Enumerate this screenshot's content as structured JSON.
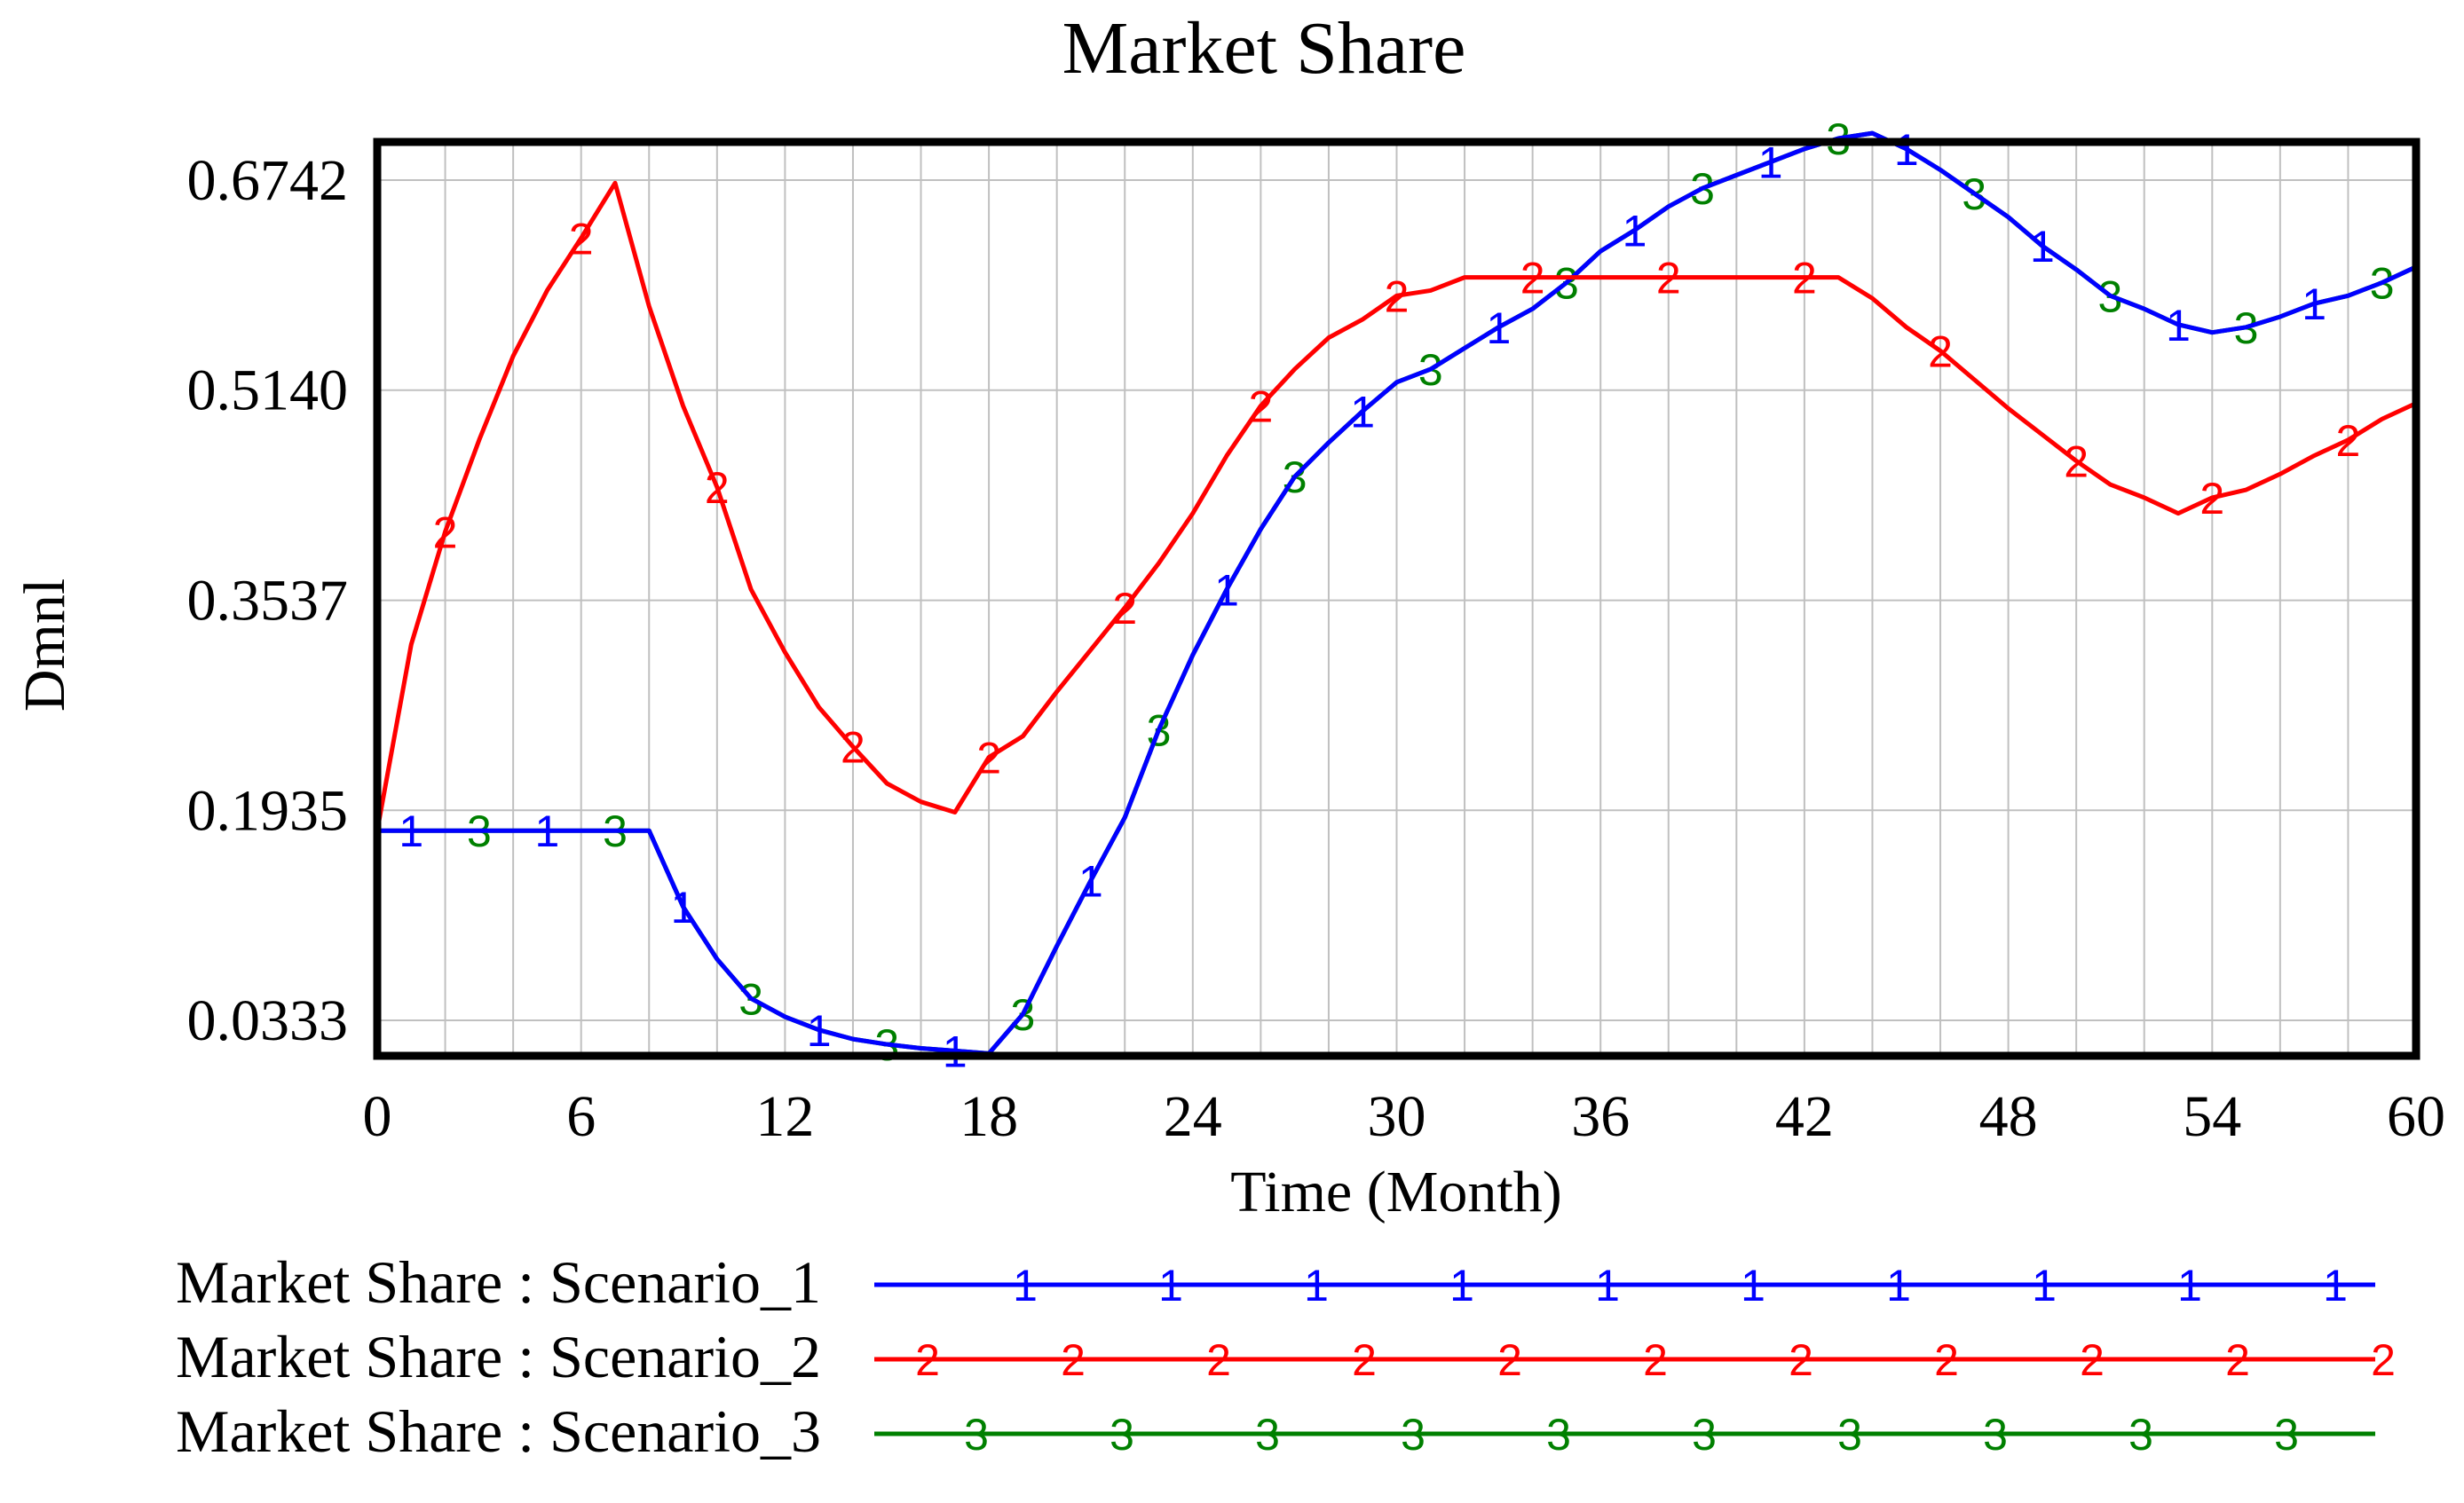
{
  "chart_data": {
    "type": "line",
    "title": "Market Share",
    "xlabel": "Time (Month)",
    "ylabel": "Dmnl",
    "xlim": [
      0,
      60
    ],
    "ylim": [
      0.0333,
      0.6742
    ],
    "x_ticks": [
      "0",
      "6",
      "12",
      "18",
      "24",
      "30",
      "36",
      "42",
      "48",
      "54",
      "60"
    ],
    "y_ticks": [
      "0.6742",
      "0.5140",
      "0.3537",
      "0.1935",
      "0.0333"
    ],
    "grid": true,
    "legend_position": "bottom",
    "series": [
      {
        "name": "Market Share : Scenario_1",
        "marker": "1",
        "color": "#0000ff",
        "x": [
          0,
          1,
          2,
          3,
          4,
          5,
          6,
          7,
          8,
          9,
          10,
          11,
          12,
          13,
          14,
          15,
          16,
          17,
          18,
          19,
          20,
          21,
          22,
          23,
          24,
          25,
          26,
          27,
          28,
          29,
          30,
          31,
          32,
          33,
          34,
          35,
          36,
          37,
          38,
          39,
          40,
          41,
          42,
          43,
          44,
          45,
          46,
          47,
          48,
          49,
          50,
          51,
          52,
          53,
          54,
          55,
          56,
          57,
          58,
          59,
          60
        ],
        "y": [
          0.178,
          0.178,
          0.178,
          0.178,
          0.178,
          0.178,
          0.178,
          0.178,
          0.178,
          0.12,
          0.08,
          0.05,
          0.036,
          0.026,
          0.019,
          0.015,
          0.012,
          0.01,
          0.008,
          0.038,
          0.09,
          0.14,
          0.188,
          0.255,
          0.312,
          0.362,
          0.408,
          0.448,
          0.474,
          0.498,
          0.52,
          0.53,
          0.546,
          0.562,
          0.576,
          0.596,
          0.62,
          0.636,
          0.654,
          0.668,
          0.678,
          0.688,
          0.698,
          0.706,
          0.71,
          0.698,
          0.682,
          0.664,
          0.646,
          0.624,
          0.606,
          0.586,
          0.576,
          0.564,
          0.558,
          0.562,
          0.57,
          0.58,
          0.586,
          0.596,
          0.608
        ]
      },
      {
        "name": "Market Share : Scenario_2",
        "marker": "2",
        "color": "#ff0000",
        "x": [
          0,
          1,
          2,
          3,
          4,
          5,
          6,
          7,
          8,
          9,
          10,
          11,
          12,
          13,
          14,
          15,
          16,
          17,
          18,
          19,
          20,
          21,
          22,
          23,
          24,
          25,
          26,
          27,
          28,
          29,
          30,
          31,
          32,
          33,
          34,
          35,
          36,
          37,
          38,
          39,
          40,
          41,
          42,
          43,
          44,
          45,
          46,
          47,
          48,
          49,
          50,
          51,
          52,
          53,
          54,
          55,
          56,
          57,
          58,
          59,
          60
        ],
        "y": [
          0.178,
          0.32,
          0.406,
          0.476,
          0.54,
          0.59,
          0.63,
          0.672,
          0.578,
          0.502,
          0.44,
          0.362,
          0.314,
          0.272,
          0.242,
          0.214,
          0.2,
          0.192,
          0.234,
          0.25,
          0.284,
          0.316,
          0.348,
          0.382,
          0.42,
          0.464,
          0.502,
          0.53,
          0.554,
          0.568,
          0.586,
          0.59,
          0.6,
          0.6,
          0.6,
          0.6,
          0.6,
          0.6,
          0.6,
          0.6,
          0.6,
          0.6,
          0.6,
          0.6,
          0.584,
          0.562,
          0.544,
          0.522,
          0.5,
          0.48,
          0.46,
          0.442,
          0.432,
          0.42,
          0.432,
          0.438,
          0.45,
          0.464,
          0.476,
          0.492,
          0.504
        ]
      },
      {
        "name": "Market Share : Scenario_3",
        "marker": "3",
        "color": "#008000",
        "x": [
          0,
          1,
          2,
          3,
          4,
          5,
          6,
          7,
          8,
          9,
          10,
          11,
          12,
          13,
          14,
          15,
          16,
          17,
          18,
          19,
          20,
          21,
          22,
          23,
          24,
          25,
          26,
          27,
          28,
          29,
          30,
          31,
          32,
          33,
          34,
          35,
          36,
          37,
          38,
          39,
          40,
          41,
          42,
          43,
          44,
          45,
          46,
          47,
          48,
          49,
          50,
          51,
          52,
          53,
          54,
          55,
          56,
          57,
          58,
          59,
          60
        ],
        "y": [
          0.178,
          0.178,
          0.178,
          0.178,
          0.178,
          0.178,
          0.178,
          0.178,
          0.178,
          0.12,
          0.08,
          0.05,
          0.036,
          0.026,
          0.019,
          0.015,
          0.012,
          0.01,
          0.008,
          0.038,
          0.09,
          0.14,
          0.188,
          0.255,
          0.312,
          0.362,
          0.408,
          0.448,
          0.474,
          0.498,
          0.52,
          0.53,
          0.546,
          0.562,
          0.576,
          0.596,
          0.62,
          0.636,
          0.654,
          0.668,
          0.678,
          0.688,
          0.698,
          0.706,
          0.71,
          0.698,
          0.682,
          0.664,
          0.646,
          0.624,
          0.606,
          0.586,
          0.576,
          0.564,
          0.558,
          0.562,
          0.57,
          0.58,
          0.586,
          0.596,
          0.608
        ]
      }
    ]
  }
}
